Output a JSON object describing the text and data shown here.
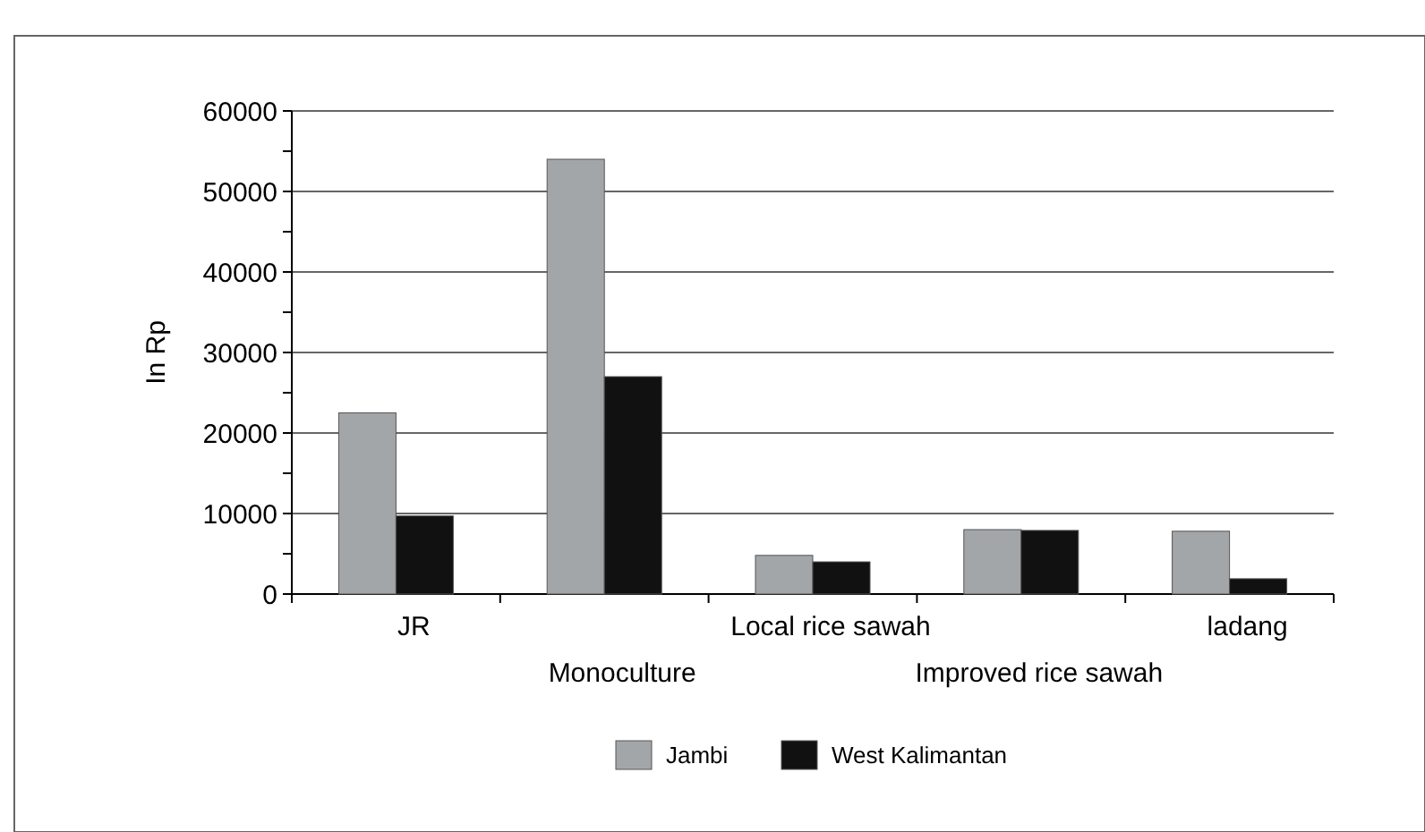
{
  "chart_data": {
    "type": "bar",
    "ylabel": "In Rp",
    "categories": [
      "JR",
      "Monoculture",
      "Local rice  sawah",
      "Improved rice sawah",
      "ladang"
    ],
    "series": [
      {
        "name": "Jambi",
        "color": "#a3a6a9",
        "values": [
          22500,
          54000,
          4800,
          8000,
          7800
        ]
      },
      {
        "name": "West Kalimantan",
        "color": "#111111",
        "values": [
          9700,
          27000,
          4000,
          7900,
          1900
        ]
      }
    ],
    "ylim": [
      0,
      60000
    ],
    "yticks": [
      0,
      {
        "value": 5000,
        "label": null
      },
      10000,
      {
        "value": 15000,
        "label": null
      },
      20000,
      {
        "value": 25000,
        "label": null
      },
      30000,
      {
        "value": 35000,
        "label": null
      },
      40000,
      {
        "value": 45000,
        "label": null
      },
      50000,
      {
        "value": 55000,
        "label": null
      },
      60000
    ],
    "grid": "y",
    "legend": "bottom"
  }
}
